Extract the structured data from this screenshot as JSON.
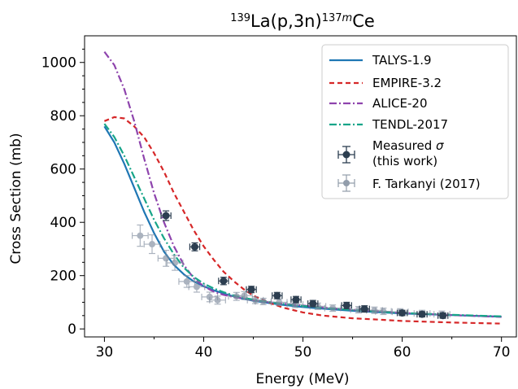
{
  "chart_data": {
    "type": "line",
    "title": {
      "sup1": "139",
      "base1": "La(p,3n)",
      "sup2": "137",
      "sup2_italic": "m",
      "base2": "Ce"
    },
    "xlabel": "Energy (MeV)",
    "ylabel": "Cross Section (mb)",
    "xlim": [
      28,
      71.5
    ],
    "ylim": [
      -30,
      1100
    ],
    "xticks": [
      30,
      40,
      50,
      60,
      70
    ],
    "yticks": [
      0,
      200,
      400,
      600,
      800,
      1000
    ],
    "legend_position": "upper right",
    "series": [
      {
        "name": "TALYS-1.9",
        "color": "#1f77b4",
        "dash": "solid",
        "key": "talys",
        "points": [
          [
            30,
            760
          ],
          [
            31,
            700
          ],
          [
            32,
            620
          ],
          [
            33,
            530
          ],
          [
            34,
            440
          ],
          [
            35,
            360
          ],
          [
            36,
            290
          ],
          [
            37,
            240
          ],
          [
            38,
            205
          ],
          [
            39,
            178
          ],
          [
            40,
            160
          ],
          [
            41,
            145
          ],
          [
            42,
            133
          ],
          [
            43,
            122
          ],
          [
            44,
            113
          ],
          [
            45,
            106
          ],
          [
            46,
            100
          ],
          [
            48,
            90
          ],
          [
            50,
            82
          ],
          [
            52,
            76
          ],
          [
            55,
            68
          ],
          [
            58,
            62
          ],
          [
            60,
            58
          ],
          [
            65,
            52
          ],
          [
            70,
            46
          ]
        ]
      },
      {
        "name": "EMPIRE-3.2",
        "color": "#d62728",
        "dash": "dashed",
        "key": "empire",
        "points": [
          [
            30,
            780
          ],
          [
            31,
            795
          ],
          [
            32,
            790
          ],
          [
            33,
            760
          ],
          [
            34,
            720
          ],
          [
            35,
            660
          ],
          [
            36,
            590
          ],
          [
            37,
            510
          ],
          [
            38,
            440
          ],
          [
            39,
            370
          ],
          [
            40,
            310
          ],
          [
            41,
            260
          ],
          [
            42,
            215
          ],
          [
            43,
            180
          ],
          [
            44,
            150
          ],
          [
            45,
            125
          ],
          [
            46,
            108
          ],
          [
            47,
            93
          ],
          [
            48,
            80
          ],
          [
            50,
            62
          ],
          [
            52,
            50
          ],
          [
            55,
            40
          ],
          [
            58,
            34
          ],
          [
            60,
            30
          ],
          [
            65,
            24
          ],
          [
            70,
            20
          ]
        ]
      },
      {
        "name": "ALICE-20",
        "color": "#8e44ad",
        "dash": "dashdot",
        "key": "alice",
        "points": [
          [
            30,
            1040
          ],
          [
            31,
            990
          ],
          [
            32,
            900
          ],
          [
            33,
            780
          ],
          [
            34,
            640
          ],
          [
            35,
            510
          ],
          [
            36,
            400
          ],
          [
            37,
            310
          ],
          [
            38,
            240
          ],
          [
            39,
            190
          ],
          [
            40,
            160
          ],
          [
            41,
            140
          ],
          [
            42,
            128
          ],
          [
            43,
            120
          ],
          [
            44,
            114
          ],
          [
            45,
            108
          ],
          [
            46,
            103
          ],
          [
            48,
            95
          ],
          [
            50,
            88
          ],
          [
            52,
            80
          ],
          [
            55,
            72
          ],
          [
            58,
            65
          ],
          [
            60,
            60
          ],
          [
            65,
            52
          ],
          [
            70,
            45
          ]
        ]
      },
      {
        "name": "TENDL-2017",
        "color": "#17a589",
        "dash": "dashdot",
        "key": "tendl",
        "points": [
          [
            30,
            770
          ],
          [
            31,
            720
          ],
          [
            32,
            650
          ],
          [
            33,
            570
          ],
          [
            34,
            490
          ],
          [
            35,
            410
          ],
          [
            36,
            340
          ],
          [
            37,
            280
          ],
          [
            38,
            230
          ],
          [
            39,
            195
          ],
          [
            40,
            170
          ],
          [
            41,
            152
          ],
          [
            42,
            138
          ],
          [
            43,
            126
          ],
          [
            44,
            117
          ],
          [
            45,
            110
          ],
          [
            46,
            104
          ],
          [
            48,
            94
          ],
          [
            50,
            86
          ],
          [
            52,
            79
          ],
          [
            55,
            71
          ],
          [
            58,
            64
          ],
          [
            60,
            60
          ],
          [
            65,
            53
          ],
          [
            70,
            47
          ]
        ]
      }
    ],
    "measured": {
      "name": "Measured σ",
      "name2": "(this work)",
      "color": "#2c3e50",
      "points": [
        {
          "x": 36.2,
          "y": 425,
          "xerr": 0.5,
          "yerr": 18
        },
        {
          "x": 39.1,
          "y": 308,
          "xerr": 0.5,
          "yerr": 15
        },
        {
          "x": 42.0,
          "y": 180,
          "xerr": 0.5,
          "yerr": 14
        },
        {
          "x": 44.8,
          "y": 148,
          "xerr": 0.5,
          "yerr": 12
        },
        {
          "x": 47.4,
          "y": 125,
          "xerr": 0.5,
          "yerr": 12
        },
        {
          "x": 49.3,
          "y": 110,
          "xerr": 0.5,
          "yerr": 12
        },
        {
          "x": 51.0,
          "y": 95,
          "xerr": 0.5,
          "yerr": 12
        },
        {
          "x": 54.4,
          "y": 88,
          "xerr": 0.5,
          "yerr": 12
        },
        {
          "x": 56.2,
          "y": 75,
          "xerr": 0.5,
          "yerr": 12
        },
        {
          "x": 60.0,
          "y": 60,
          "xerr": 0.5,
          "yerr": 10
        },
        {
          "x": 62.0,
          "y": 55,
          "xerr": 0.5,
          "yerr": 10
        },
        {
          "x": 64.1,
          "y": 50,
          "xerr": 0.5,
          "yerr": 10
        }
      ]
    },
    "tarkanyi": {
      "name": "F. Tarkanyi (2017)",
      "color": "#7f8c9d",
      "points": [
        {
          "x": 33.6,
          "y": 350,
          "xerr": 0.8,
          "yerr": 40
        },
        {
          "x": 34.8,
          "y": 318,
          "xerr": 0.8,
          "yerr": 35
        },
        {
          "x": 36.2,
          "y": 265,
          "xerr": 0.8,
          "yerr": 30
        },
        {
          "x": 37.1,
          "y": 248,
          "xerr": 0.8,
          "yerr": 28
        },
        {
          "x": 38.3,
          "y": 178,
          "xerr": 0.8,
          "yerr": 22
        },
        {
          "x": 39.3,
          "y": 158,
          "xerr": 0.8,
          "yerr": 20
        },
        {
          "x": 40.6,
          "y": 120,
          "xerr": 0.8,
          "yerr": 18
        },
        {
          "x": 41.4,
          "y": 108,
          "xerr": 0.8,
          "yerr": 15
        },
        {
          "x": 43.3,
          "y": 122,
          "xerr": 0.8,
          "yerr": 15
        },
        {
          "x": 44.1,
          "y": 125,
          "xerr": 0.8,
          "yerr": 15
        },
        {
          "x": 45.2,
          "y": 108,
          "xerr": 0.8,
          "yerr": 13
        },
        {
          "x": 46.0,
          "y": 103,
          "xerr": 0.8,
          "yerr": 12
        },
        {
          "x": 47.6,
          "y": 100,
          "xerr": 0.8,
          "yerr": 12
        },
        {
          "x": 49.2,
          "y": 92,
          "xerr": 0.8,
          "yerr": 12
        },
        {
          "x": 51.5,
          "y": 85,
          "xerr": 0.8,
          "yerr": 12
        },
        {
          "x": 53.0,
          "y": 78,
          "xerr": 0.8,
          "yerr": 12
        },
        {
          "x": 55.6,
          "y": 72,
          "xerr": 0.8,
          "yerr": 12
        },
        {
          "x": 57.2,
          "y": 70,
          "xerr": 0.8,
          "yerr": 12
        },
        {
          "x": 58.1,
          "y": 66,
          "xerr": 0.8,
          "yerr": 12
        },
        {
          "x": 59.8,
          "y": 64,
          "xerr": 0.8,
          "yerr": 12
        },
        {
          "x": 62.0,
          "y": 58,
          "xerr": 0.8,
          "yerr": 12
        },
        {
          "x": 64.0,
          "y": 55,
          "xerr": 0.8,
          "yerr": 12
        }
      ]
    }
  }
}
